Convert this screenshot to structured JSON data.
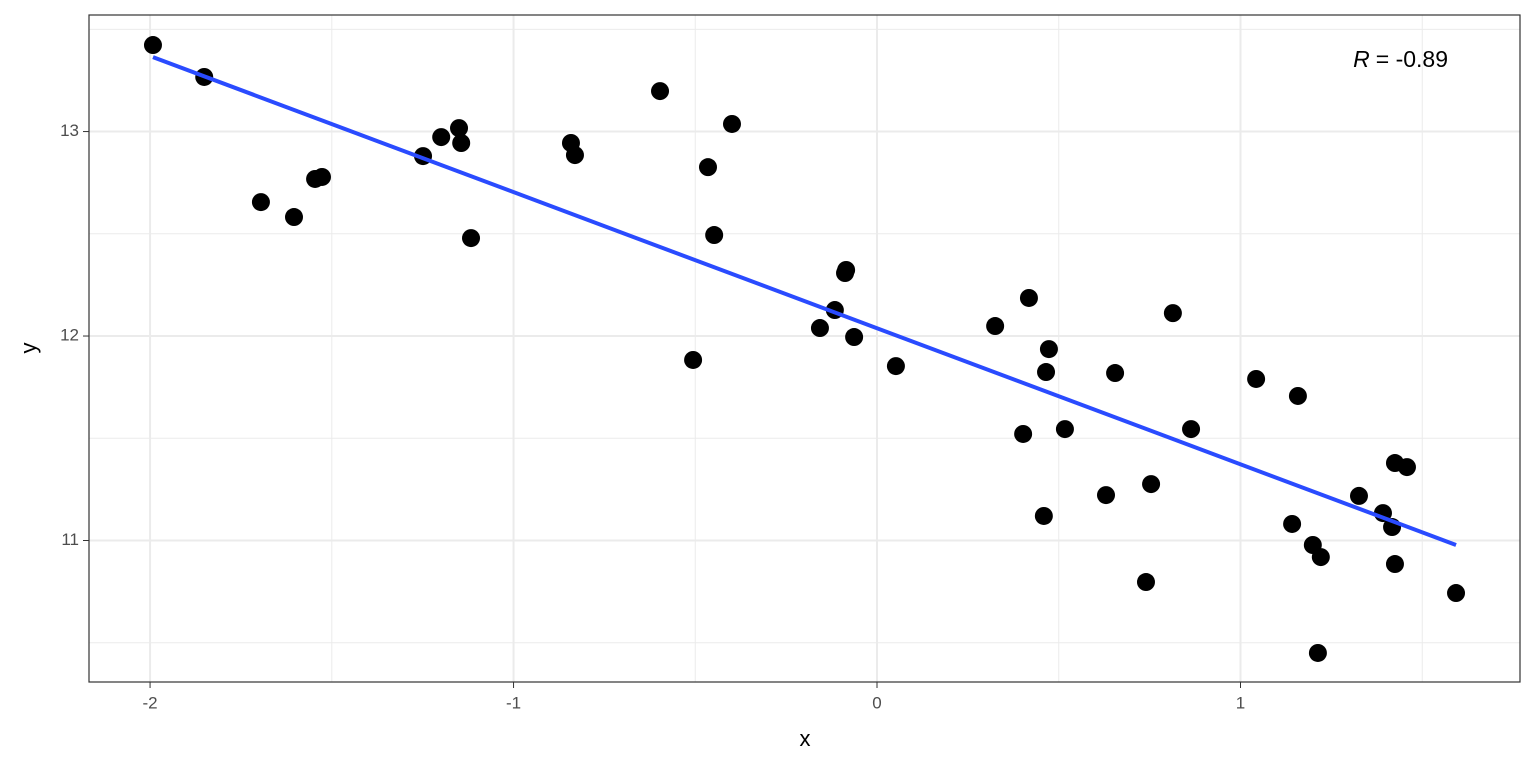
{
  "chart_data": {
    "type": "scatter",
    "x_label": "x",
    "y_label": "y",
    "annotation": {
      "symbol": "R",
      "text": "= -0.89"
    },
    "xlim": [
      -2.168,
      1.769
    ],
    "ylim": [
      10.308,
      13.57
    ],
    "xticks": [
      -2,
      -1,
      0,
      1
    ],
    "yticks": [
      11,
      12,
      13
    ],
    "grid": true,
    "series": [
      {
        "color": "#000000",
        "x": [
          -1.992,
          -1.851,
          -1.695,
          -1.604,
          -1.546,
          -1.527,
          -1.249,
          -1.199,
          -1.15,
          -1.144,
          -1.117,
          -0.842,
          -0.831,
          -0.597,
          -0.506,
          -0.465,
          -0.448,
          -0.399,
          -0.157,
          -0.116,
          -0.088,
          -0.085,
          -0.063,
          0.052,
          0.325,
          0.402,
          0.418,
          0.459,
          0.465,
          0.473,
          0.517,
          0.63,
          0.655,
          0.74,
          0.754,
          0.814,
          0.864,
          1.043,
          1.142,
          1.158,
          1.199,
          1.213,
          1.221,
          1.326,
          1.392,
          1.417,
          1.425,
          1.425,
          1.458,
          1.593
        ],
        "values": [
          13.423,
          13.267,
          12.655,
          12.582,
          12.768,
          12.778,
          12.88,
          12.973,
          13.017,
          12.944,
          12.479,
          12.944,
          12.885,
          13.198,
          11.883,
          12.826,
          12.494,
          13.037,
          12.039,
          12.127,
          12.308,
          12.323,
          11.995,
          11.853,
          12.049,
          11.521,
          12.186,
          11.12,
          11.824,
          11.936,
          11.545,
          11.222,
          11.819,
          10.797,
          11.276,
          12.112,
          11.545,
          11.79,
          11.081,
          11.707,
          10.978,
          10.45,
          10.919,
          11.218,
          11.134,
          11.066,
          11.379,
          10.885,
          11.359,
          10.743
        ]
      }
    ],
    "fit": {
      "color": "#2a4bff",
      "x": [
        -1.992,
        1.593
      ],
      "values": [
        13.364,
        10.978
      ]
    }
  }
}
